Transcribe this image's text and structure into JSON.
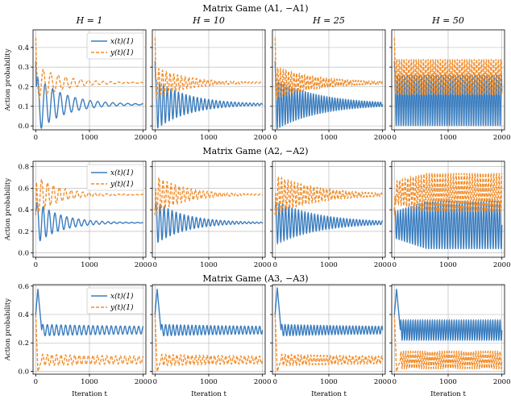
{
  "chart_data": {
    "type": "line",
    "figure": "grid of 3 x 4 line plots",
    "column_titles": [
      "H = 1",
      "H = 10",
      "H = 25",
      "H = 50"
    ],
    "row_titles": [
      "Matrix Game (A1, −A1)",
      "Matrix Game (A2, −A2)",
      "Matrix Game (A3, −A3)"
    ],
    "xlabel": "Iteration t",
    "ylabel": "Action probability",
    "xlim": [
      -50,
      2050
    ],
    "xticks": [
      0,
      1000,
      2000
    ],
    "grid": true,
    "legend": {
      "placement": "upper-right",
      "entries": [
        "x(t)(1)",
        "y(t)(1)"
      ]
    },
    "series_styles": [
      {
        "name": "x(t)(1)",
        "color": "#3a7dbf",
        "dash": "solid"
      },
      {
        "name": "y(t)(1)",
        "color": "#f28e2b",
        "dash": "dashed"
      }
    ],
    "rows": [
      {
        "title": "Matrix Game (A1, −A1)",
        "ylim": [
          -0.02,
          0.49
        ],
        "yticks": [
          0.0,
          0.1,
          0.2,
          0.3,
          0.4
        ],
        "ytick_labels": [
          "0.0",
          "0.1",
          "0.2",
          "0.3",
          "0.4"
        ],
        "panels": [
          {
            "H": 1,
            "x": {
              "start": 0.33,
              "equilibrium": 0.11,
              "amplitude": 0.15,
              "period": 140,
              "decay": 500
            },
            "y": {
              "start": 0.45,
              "equilibrium": 0.22,
              "amplitude": 0.09,
              "period": 140,
              "decay": 500
            }
          },
          {
            "H": 10,
            "x": {
              "start": 0.33,
              "equilibrium": 0.11,
              "amplitude": 0.13,
              "period": 70,
              "decay": 600
            },
            "y": {
              "start": 0.45,
              "equilibrium": 0.22,
              "amplitude": 0.08,
              "period": 70,
              "decay": 600
            }
          },
          {
            "H": 25,
            "x": {
              "start": 0.33,
              "equilibrium": 0.11,
              "amplitude": 0.13,
              "period": 50,
              "decay": 800
            },
            "y": {
              "start": 0.45,
              "equilibrium": 0.22,
              "amplitude": 0.08,
              "period": 50,
              "decay": 800
            }
          },
          {
            "H": 50,
            "x": {
              "start": 0.33,
              "equilibrium": 0.13,
              "amplitude": 0.13,
              "period": 45,
              "decay": 0
            },
            "y": {
              "start": 0.45,
              "equilibrium": 0.25,
              "amplitude": 0.09,
              "period": 45,
              "decay": 0
            }
          }
        ]
      },
      {
        "title": "Matrix Game (A2, −A2)",
        "ylim": [
          -0.04,
          0.85
        ],
        "yticks": [
          0.0,
          0.2,
          0.4,
          0.6,
          0.8
        ],
        "ytick_labels": [
          "0.0",
          "0.2",
          "0.4",
          "0.6",
          "0.8"
        ],
        "panels": [
          {
            "H": 1,
            "x": {
              "start": 0.42,
              "equilibrium": 0.28,
              "amplitude": 0.2,
              "period": 110,
              "decay": 450
            },
            "y": {
              "start": 0.35,
              "equilibrium": 0.54,
              "amplitude": 0.18,
              "period": 110,
              "decay": 450
            }
          },
          {
            "H": 10,
            "x": {
              "start": 0.42,
              "equilibrium": 0.28,
              "amplitude": 0.2,
              "period": 75,
              "decay": 550
            },
            "y": {
              "start": 0.35,
              "equilibrium": 0.54,
              "amplitude": 0.18,
              "period": 75,
              "decay": 550
            }
          },
          {
            "H": 25,
            "x": {
              "start": 0.42,
              "equilibrium": 0.28,
              "amplitude": 0.2,
              "period": 60,
              "decay": 800
            },
            "y": {
              "start": 0.35,
              "equilibrium": 0.54,
              "amplitude": 0.18,
              "period": 60,
              "decay": 800
            }
          },
          {
            "H": 50,
            "x": {
              "start": 0.42,
              "equilibrium": 0.26,
              "amplitude": 0.22,
              "period": 50,
              "growth": 0.08
            },
            "y": {
              "start": 0.35,
              "equilibrium": 0.56,
              "amplitude": 0.18,
              "period": 50,
              "growth": 0.08
            }
          }
        ]
      },
      {
        "title": "Matrix Game (A3, −A3)",
        "ylim": [
          -0.02,
          0.61
        ],
        "yticks": [
          0.0,
          0.2,
          0.4,
          0.6
        ],
        "ytick_labels": [
          "0.0",
          "0.2",
          "0.4",
          "0.6"
        ],
        "panels": [
          {
            "H": 1,
            "x": {
              "start": 0.4,
              "peak": 0.58,
              "equilibrium": 0.29,
              "amplitude": 0.04,
              "period": 85,
              "decay": 1500
            },
            "y": {
              "start": 0.4,
              "trough": 0.0,
              "equilibrium": 0.08,
              "amplitude": 0.04,
              "period": 85,
              "decay": 1500
            }
          },
          {
            "H": 10,
            "x": {
              "start": 0.4,
              "peak": 0.58,
              "equilibrium": 0.29,
              "amplitude": 0.04,
              "period": 70,
              "decay": 1500
            },
            "y": {
              "start": 0.4,
              "trough": 0.0,
              "equilibrium": 0.08,
              "amplitude": 0.04,
              "period": 70,
              "decay": 1500
            }
          },
          {
            "H": 25,
            "x": {
              "start": 0.4,
              "peak": 0.59,
              "equilibrium": 0.29,
              "amplitude": 0.04,
              "period": 60,
              "decay": 1500
            },
            "y": {
              "start": 0.4,
              "trough": 0.0,
              "equilibrium": 0.08,
              "amplitude": 0.04,
              "period": 60,
              "decay": 1500
            }
          },
          {
            "H": 50,
            "x": {
              "start": 0.4,
              "peak": 0.58,
              "equilibrium": 0.29,
              "amplitude": 0.07,
              "period": 45,
              "decay": 0
            },
            "y": {
              "start": 0.4,
              "trough": 0.0,
              "equilibrium": 0.08,
              "amplitude": 0.06,
              "period": 45,
              "decay": 0
            }
          }
        ]
      }
    ]
  }
}
